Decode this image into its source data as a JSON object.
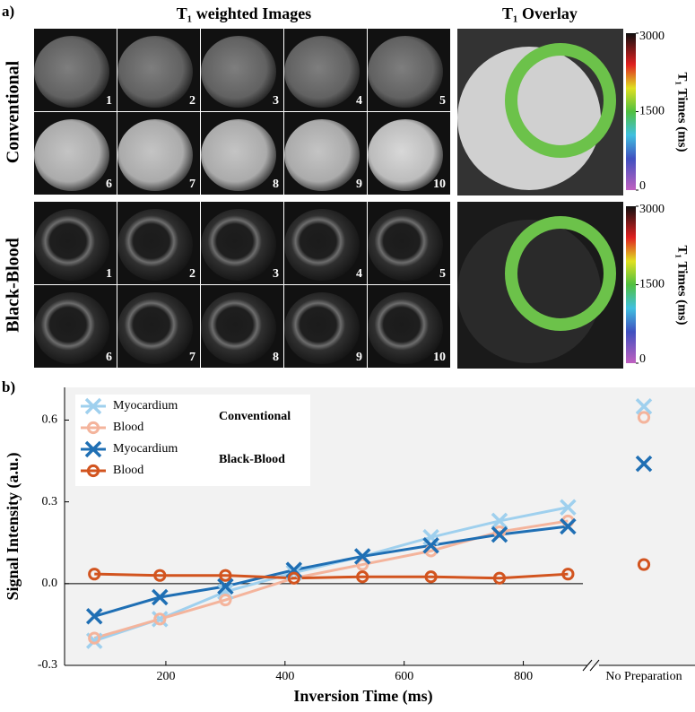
{
  "panel_a": {
    "label": "a)",
    "images_title": "T₁ weighted Images",
    "overlay_title": "T₁ Overlay",
    "colorbar_label": "T₁ Times (ms)",
    "colorbar_lim": [
      0,
      3000
    ],
    "colorbar_ticks": [
      0,
      1500,
      3000
    ],
    "rows": [
      {
        "label": "Conventional",
        "image_numbers": [
          1,
          2,
          3,
          4,
          5,
          6,
          7,
          8,
          9,
          10
        ]
      },
      {
        "label": "Black-Blood",
        "image_numbers": [
          1,
          2,
          3,
          4,
          5,
          6,
          7,
          8,
          9,
          10
        ]
      }
    ]
  },
  "chart_data": {
    "type": "line",
    "panel_label": "b)",
    "x_label": "Inversion Time (ms)",
    "y_label": "Signal Intensity (a.u.)",
    "x": [
      80,
      190,
      300,
      415,
      530,
      645,
      760,
      875
    ],
    "xlim": [
      30,
      900
    ],
    "xticks": [
      200,
      400,
      600,
      800
    ],
    "ylim": [
      -0.3,
      0.72
    ],
    "yticks": [
      -0.3,
      {
        "value": 0,
        "label": "0.0"
      },
      0.3,
      0.6
    ],
    "break_label": "No Preparation",
    "legend_position": "upper left",
    "legend_groups": [
      "Conventional",
      "Black-Blood"
    ],
    "series": [
      {
        "name": "Myocardium",
        "color": "#9fd0ee",
        "marker": "x",
        "values": [
          -0.21,
          -0.13,
          -0.03,
          0.04,
          0.1,
          0.17,
          0.23,
          0.28
        ],
        "no_preparation": 0.65
      },
      {
        "name": "Blood",
        "color": "#f4b49c",
        "marker": "o",
        "values": [
          -0.2,
          -0.13,
          -0.06,
          0.02,
          0.07,
          0.12,
          0.19,
          0.23
        ],
        "no_preparation": 0.61
      },
      {
        "name": "Myocardium",
        "color": "#1f6fb4",
        "marker": "x",
        "values": [
          -0.12,
          -0.05,
          -0.01,
          0.05,
          0.1,
          0.14,
          0.18,
          0.21
        ],
        "no_preparation": 0.44
      },
      {
        "name": "Blood",
        "color": "#d2541f",
        "marker": "o",
        "values": [
          0.035,
          0.03,
          0.03,
          0.02,
          0.025,
          0.025,
          0.02,
          0.035
        ],
        "no_preparation": 0.07
      }
    ]
  }
}
